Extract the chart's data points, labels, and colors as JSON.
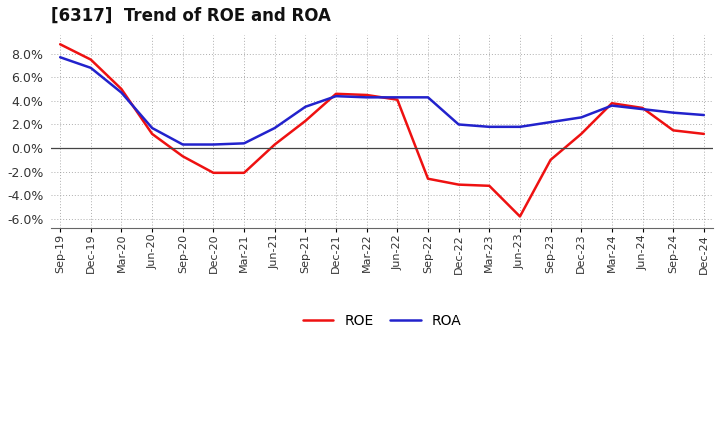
{
  "title": "[6317]  Trend of ROE and ROA",
  "labels": [
    "Sep-19",
    "Dec-19",
    "Mar-20",
    "Jun-20",
    "Sep-20",
    "Dec-20",
    "Mar-21",
    "Jun-21",
    "Sep-21",
    "Dec-21",
    "Mar-22",
    "Jun-22",
    "Sep-22",
    "Dec-22",
    "Mar-23",
    "Jun-23",
    "Sep-23",
    "Dec-23",
    "Mar-24",
    "Jun-24",
    "Sep-24",
    "Dec-24"
  ],
  "ROE": [
    8.8,
    7.5,
    5.0,
    1.2,
    -0.7,
    -2.1,
    -2.1,
    0.3,
    2.3,
    4.6,
    4.5,
    4.1,
    -2.6,
    -3.1,
    -3.2,
    -5.8,
    -1.0,
    1.2,
    3.8,
    3.4,
    1.5,
    1.2
  ],
  "ROA": [
    7.7,
    6.8,
    4.7,
    1.7,
    0.3,
    0.3,
    0.4,
    1.7,
    3.5,
    4.4,
    4.3,
    4.3,
    4.3,
    2.0,
    1.8,
    1.8,
    2.2,
    2.6,
    3.6,
    3.3,
    3.0,
    2.8
  ],
  "ROE_color": "#ee1111",
  "ROA_color": "#2222cc",
  "background_color": "#ffffff",
  "grid_color": "#999999",
  "ylim": [
    -6.8,
    9.6
  ],
  "yticks": [
    -6.0,
    -4.0,
    -2.0,
    0.0,
    2.0,
    4.0,
    6.0,
    8.0
  ],
  "legend_ROE": "ROE",
  "legend_ROA": "ROA",
  "title_fontsize": 12,
  "tick_fontsize": 8,
  "linewidth": 1.8
}
